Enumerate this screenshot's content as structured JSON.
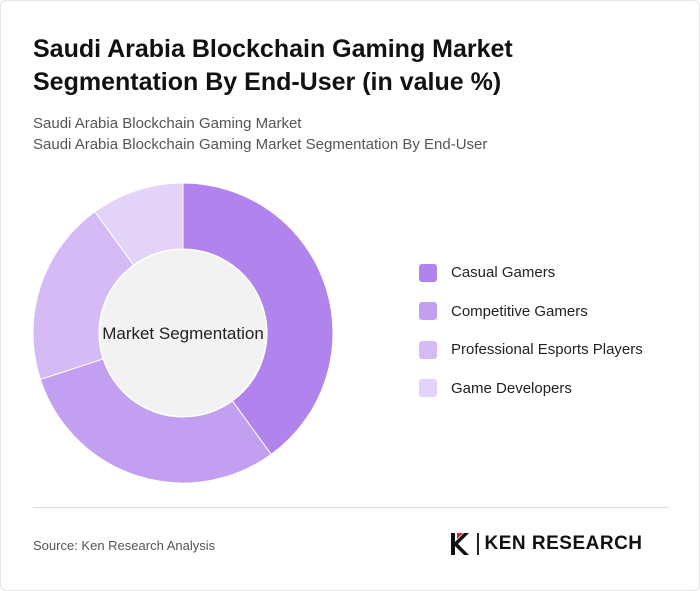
{
  "title": "Saudi Arabia Blockchain Gaming Market Segmentation By End-User (in value %)",
  "subtitle_1": "Saudi Arabia Blockchain Gaming Market",
  "subtitle_2": "Saudi Arabia Blockchain Gaming Market Segmentation By End-User",
  "chart_data": {
    "type": "pie",
    "center_label": "Market Segmentation",
    "legend_position": "right",
    "categories": [
      "Casual Gamers",
      "Competitive Gamers",
      "Professional Esports Players",
      "Game Developers"
    ],
    "values": [
      40,
      30,
      20,
      10
    ],
    "colors": [
      "#b084ec",
      "#c29ff0",
      "#d4bbf5",
      "#e3d3f8"
    ]
  },
  "source": "Source: Ken Research Analysis",
  "logo": {
    "text": "KEN RESEARCH",
    "icon": "ken-research-logo-icon"
  }
}
